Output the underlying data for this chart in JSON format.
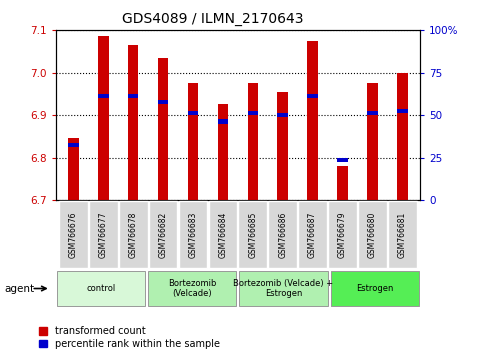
{
  "title": "GDS4089 / ILMN_2170643",
  "samples": [
    "GSM766676",
    "GSM766677",
    "GSM766678",
    "GSM766682",
    "GSM766683",
    "GSM766684",
    "GSM766685",
    "GSM766686",
    "GSM766687",
    "GSM766679",
    "GSM766680",
    "GSM766681"
  ],
  "red_values": [
    6.845,
    7.085,
    7.065,
    7.035,
    6.975,
    6.925,
    6.975,
    6.955,
    7.075,
    6.78,
    6.975,
    7.0
  ],
  "blue_values": [
    6.83,
    6.945,
    6.945,
    6.93,
    6.905,
    6.885,
    6.905,
    6.9,
    6.945,
    6.795,
    6.905,
    6.91
  ],
  "ylim_left": [
    6.7,
    7.1
  ],
  "ylim_right": [
    0,
    100
  ],
  "yticks_left": [
    6.7,
    6.8,
    6.9,
    7.0,
    7.1
  ],
  "yticks_right": [
    0,
    25,
    50,
    75,
    100
  ],
  "ytick_labels_right": [
    "0",
    "25",
    "50",
    "75",
    "100%"
  ],
  "groups": [
    {
      "label": "control",
      "start": 0,
      "end": 3
    },
    {
      "label": "Bortezomib\n(Velcade)",
      "start": 3,
      "end": 6
    },
    {
      "label": "Bortezomib (Velcade) +\nEstrogen",
      "start": 6,
      "end": 9
    },
    {
      "label": "Estrogen",
      "start": 9,
      "end": 12
    }
  ],
  "group_colors": [
    "#d8f8d8",
    "#b0f0b0",
    "#b0f0b0",
    "#55ee55"
  ],
  "bar_width": 0.35,
  "red_color": "#cc0000",
  "blue_color": "#0000cc",
  "legend_red": "transformed count",
  "legend_blue": "percentile rank within the sample",
  "agent_label": "agent",
  "tick_bg_color": "#d8d8d8"
}
